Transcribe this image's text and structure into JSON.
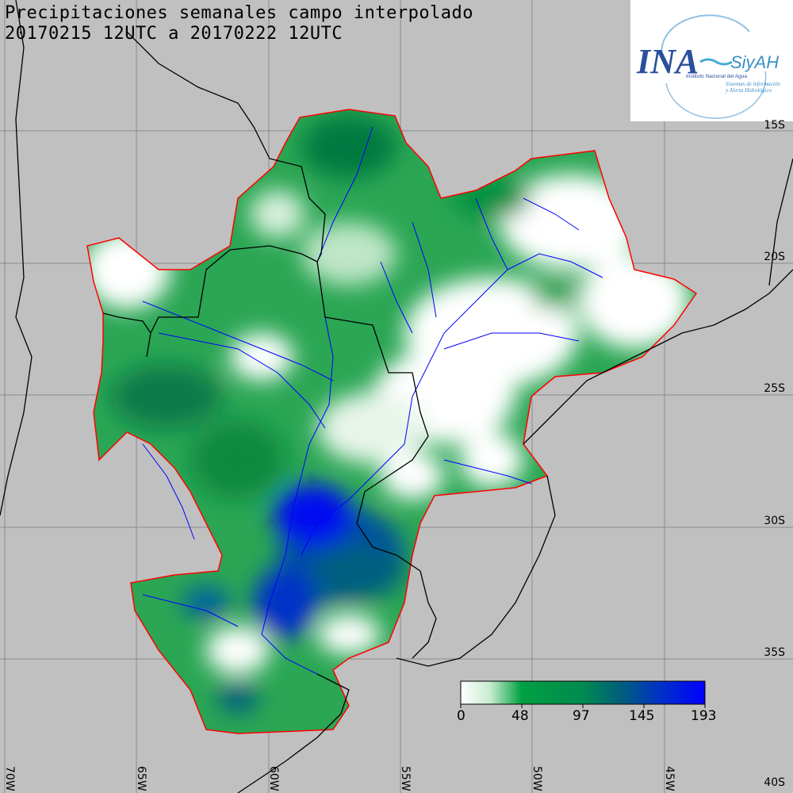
{
  "header": {
    "title_line1": "Precipitaciones semanales campo interpolado",
    "title_line2": "20170215 12UTC a 20170222 12UTC"
  },
  "logo": {
    "brand": "INA",
    "subbrand": "SiyAH",
    "line1": "Instituto Nacional del Agua",
    "line2": "Sistemas de información",
    "line3": "y Alerta Hidrológico"
  },
  "axes": {
    "lat_labels": [
      "15S",
      "20S",
      "25S",
      "30S",
      "35S",
      "40S"
    ],
    "lon_labels": [
      "70W",
      "65W",
      "60W",
      "55W",
      "50W",
      "45W"
    ]
  },
  "colorbar": {
    "labels": [
      "0",
      "48",
      "97",
      "145",
      "193"
    ],
    "colors": [
      "#ffffff",
      "#00a040",
      "#0000ff"
    ]
  },
  "colors": {
    "background": "#c0c0c0",
    "basin_outline": "#ff0000",
    "rivers": "#0000ff",
    "borders": "#000000"
  }
}
